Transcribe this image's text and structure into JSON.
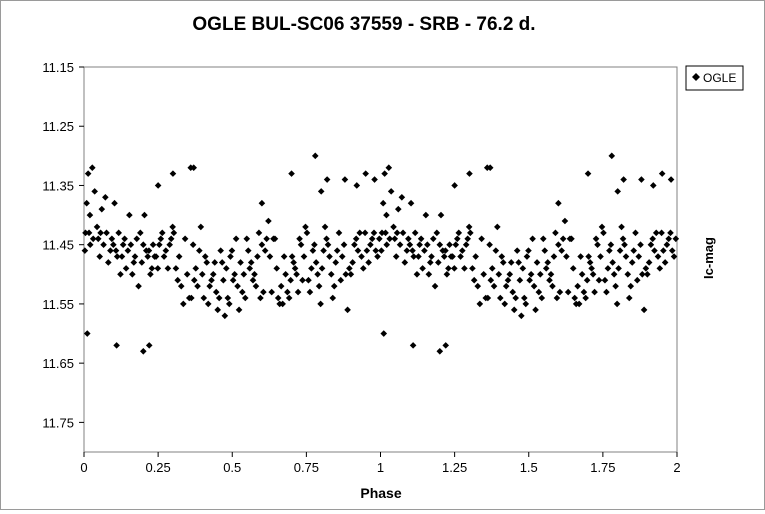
{
  "chart_data": {
    "type": "scatter",
    "title": "OGLE BUL-SC06 37559 - SRB - 76.2 d.",
    "xlabel": "Phase",
    "ylabel": "Ic-mag",
    "xlim": [
      0,
      2
    ],
    "ylim": [
      11.15,
      11.8
    ],
    "y_inverted": true,
    "grid": false,
    "legend_position": "top-right",
    "marker": "diamond",
    "marker_color": "#000000",
    "x_ticks": [
      "0",
      "0.25",
      "0.5",
      "0.75",
      "1",
      "1.25",
      "1.5",
      "1.75",
      "2"
    ],
    "y_ticks": [
      "11.15",
      "11.25",
      "11.35",
      "11.45",
      "11.55",
      "11.65",
      "11.75"
    ],
    "series": [
      {
        "name": "OGLE",
        "phase": [
          0.003,
          0.009,
          0.011,
          0.014,
          0.017,
          0.02,
          0.021,
          0.028,
          0.031,
          0.036,
          0.044,
          0.048,
          0.053,
          0.056,
          0.06,
          0.066,
          0.072,
          0.076,
          0.082,
          0.089,
          0.094,
          0.099,
          0.103,
          0.108,
          0.112,
          0.117,
          0.123,
          0.128,
          0.132,
          0.137,
          0.142,
          0.148,
          0.153,
          0.158,
          0.163,
          0.168,
          0.172,
          0.178,
          0.184,
          0.19,
          0.195,
          0.2,
          0.204,
          0.21,
          0.215,
          0.219,
          0.224,
          0.229,
          0.233,
          0.238,
          0.243,
          0.249,
          0.254,
          0.259,
          0.264,
          0.27,
          0.276,
          0.283,
          0.289,
          0.294,
          0.299,
          0.303,
          0.31,
          0.316,
          0.321,
          0.328,
          0.335,
          0.341,
          0.348,
          0.355,
          0.362,
          0.368,
          0.372,
          0.377,
          0.383,
          0.389,
          0.394,
          0.399,
          0.404,
          0.409,
          0.414,
          0.419,
          0.424,
          0.43,
          0.436,
          0.441,
          0.446,
          0.451,
          0.456,
          0.461,
          0.466,
          0.47,
          0.475,
          0.48,
          0.485,
          0.49,
          0.494,
          0.499,
          0.503,
          0.508,
          0.513,
          0.518,
          0.523,
          0.528,
          0.534,
          0.539,
          0.544,
          0.549,
          0.554,
          0.559,
          0.564,
          0.57,
          0.575,
          0.58,
          0.585,
          0.59,
          0.595,
          0.6,
          0.605,
          0.611,
          0.616,
          0.622,
          0.627,
          0.633,
          0.639,
          0.644,
          0.65,
          0.655,
          0.66,
          0.665,
          0.67,
          0.675,
          0.68,
          0.686,
          0.692,
          0.697,
          0.702,
          0.707,
          0.712,
          0.717,
          0.722,
          0.727,
          0.732,
          0.737,
          0.742,
          0.747,
          0.752,
          0.757,
          0.762,
          0.767,
          0.772,
          0.777,
          0.783,
          0.788,
          0.793,
          0.798,
          0.803,
          0.808,
          0.813,
          0.818,
          0.823,
          0.828,
          0.834,
          0.839,
          0.844,
          0.849,
          0.854,
          0.86,
          0.866,
          0.871,
          0.877,
          0.883,
          0.889,
          0.895,
          0.9,
          0.906,
          0.912,
          0.918,
          0.924,
          0.93,
          0.936,
          0.942,
          0.948,
          0.954,
          0.96,
          0.966,
          0.972,
          0.978,
          0.984,
          0.99,
          0.996,
          0.25,
          0.3,
          0.36,
          0.37,
          0.6,
          0.7,
          0.78,
          0.8,
          0.82,
          0.88,
          0.92,
          0.95,
          0.98,
          0.11,
          0.2,
          0.22,
          0.005
        ],
        "mag": [
          11.46,
          11.38,
          11.6,
          11.33,
          11.43,
          11.4,
          11.45,
          11.32,
          11.44,
          11.36,
          11.42,
          11.44,
          11.47,
          11.43,
          11.39,
          11.45,
          11.37,
          11.43,
          11.48,
          11.46,
          11.44,
          11.45,
          11.38,
          11.46,
          11.47,
          11.43,
          11.5,
          11.47,
          11.45,
          11.44,
          11.49,
          11.46,
          11.4,
          11.45,
          11.5,
          11.48,
          11.47,
          11.44,
          11.52,
          11.43,
          11.48,
          11.45,
          11.4,
          11.46,
          11.47,
          11.46,
          11.5,
          11.49,
          11.45,
          11.47,
          11.47,
          11.49,
          11.45,
          11.44,
          11.43,
          11.47,
          11.46,
          11.49,
          11.45,
          11.44,
          11.42,
          11.43,
          11.49,
          11.51,
          11.47,
          11.52,
          11.55,
          11.44,
          11.5,
          11.54,
          11.54,
          11.45,
          11.51,
          11.49,
          11.52,
          11.46,
          11.42,
          11.5,
          11.54,
          11.47,
          11.48,
          11.55,
          11.52,
          11.51,
          11.5,
          11.48,
          11.53,
          11.56,
          11.54,
          11.46,
          11.48,
          11.51,
          11.57,
          11.49,
          11.54,
          11.55,
          11.47,
          11.46,
          11.51,
          11.5,
          11.44,
          11.52,
          11.56,
          11.48,
          11.53,
          11.5,
          11.54,
          11.44,
          11.46,
          11.49,
          11.48,
          11.51,
          11.5,
          11.52,
          11.47,
          11.43,
          11.54,
          11.45,
          11.53,
          11.46,
          11.44,
          11.41,
          11.47,
          11.53,
          11.44,
          11.44,
          11.49,
          11.54,
          11.55,
          11.52,
          11.55,
          11.47,
          11.5,
          11.53,
          11.54,
          11.51,
          11.47,
          11.48,
          11.49,
          11.5,
          11.53,
          11.44,
          11.45,
          11.51,
          11.47,
          11.42,
          11.43,
          11.51,
          11.53,
          11.49,
          11.46,
          11.45,
          11.48,
          11.5,
          11.52,
          11.55,
          11.49,
          11.46,
          11.42,
          11.44,
          11.45,
          11.47,
          11.5,
          11.54,
          11.52,
          11.48,
          11.46,
          11.43,
          11.51,
          11.47,
          11.45,
          11.5,
          11.56,
          11.49,
          11.5,
          11.48,
          11.45,
          11.44,
          11.46,
          11.43,
          11.47,
          11.49,
          11.43,
          11.46,
          11.48,
          11.45,
          11.44,
          11.43,
          11.46,
          11.47,
          11.44,
          11.35,
          11.33,
          11.32,
          11.32,
          11.38,
          11.33,
          11.3,
          11.36,
          11.34,
          11.34,
          11.35,
          11.33,
          11.34,
          11.62,
          11.63,
          11.62,
          11.43
        ]
      }
    ]
  }
}
